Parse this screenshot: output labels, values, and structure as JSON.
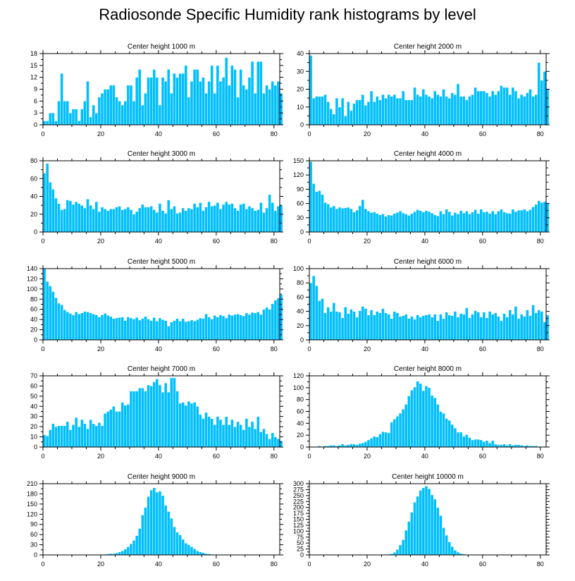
{
  "title": "Radiosonde Specific Humidity rank histograms by level",
  "colors": {
    "bar": "#00bfff",
    "bar_edge": "#ffffff",
    "axis": "#000000"
  },
  "chart_data": [
    {
      "type": "bar",
      "title": "Center height 1000 m",
      "xlim": [
        0,
        82
      ],
      "ylim": [
        0,
        18
      ],
      "xticks": [
        0,
        20,
        40,
        60,
        80
      ],
      "yticks": [
        0,
        3,
        6,
        9,
        12,
        15,
        18
      ],
      "values": [
        1,
        1,
        3,
        3,
        1,
        6,
        13,
        6,
        6,
        3,
        4,
        4,
        1,
        4,
        6,
        11,
        2,
        5,
        3,
        7,
        8,
        9,
        9,
        10,
        10,
        7,
        6,
        5,
        6,
        10,
        10,
        6,
        12,
        14,
        5,
        8,
        12,
        12,
        14,
        12,
        5,
        12,
        11,
        14,
        8,
        13,
        12,
        13,
        13,
        15,
        7,
        11,
        14,
        14,
        11,
        12,
        8,
        11,
        15,
        8,
        15,
        11,
        12,
        17,
        10,
        15,
        14,
        7,
        14,
        10,
        9,
        12,
        16,
        8,
        16,
        16,
        8,
        10,
        9,
        11,
        10,
        11,
        8
      ]
    },
    {
      "type": "bar",
      "title": "Center height 2000 m",
      "xlim": [
        0,
        82
      ],
      "ylim": [
        0,
        40
      ],
      "xticks": [
        0,
        20,
        40,
        60,
        80
      ],
      "yticks": [
        0,
        10,
        20,
        30,
        40
      ],
      "values": [
        39,
        15,
        16,
        16,
        16,
        17,
        13,
        9,
        6,
        15,
        10,
        15,
        5,
        13,
        8,
        12,
        14,
        14,
        17,
        11,
        13,
        19,
        13,
        16,
        14,
        17,
        15,
        17,
        16,
        17,
        15,
        15,
        19,
        14,
        14,
        14,
        21,
        17,
        16,
        20,
        17,
        16,
        15,
        19,
        17,
        16,
        20,
        16,
        15,
        18,
        17,
        23,
        16,
        16,
        14,
        16,
        17,
        21,
        19,
        19,
        19,
        18,
        16,
        19,
        17,
        19,
        22,
        21,
        21,
        17,
        21,
        19,
        15,
        17,
        16,
        18,
        20,
        16,
        17,
        35,
        25,
        30,
        20
      ]
    },
    {
      "type": "bar",
      "title": "Center height 3000 m",
      "xlim": [
        0,
        82
      ],
      "ylim": [
        0,
        80
      ],
      "xticks": [
        0,
        20,
        40,
        60,
        80
      ],
      "yticks": [
        0,
        20,
        40,
        60,
        80
      ],
      "values": [
        66,
        77,
        56,
        48,
        38,
        32,
        25,
        26,
        36,
        35,
        31,
        34,
        32,
        30,
        27,
        37,
        30,
        26,
        34,
        23,
        28,
        26,
        24,
        26,
        26,
        28,
        29,
        25,
        26,
        28,
        25,
        20,
        23,
        27,
        31,
        28,
        28,
        29,
        25,
        22,
        32,
        24,
        21,
        36,
        26,
        29,
        21,
        22,
        27,
        24,
        27,
        26,
        32,
        28,
        33,
        24,
        28,
        34,
        29,
        30,
        33,
        26,
        31,
        34,
        31,
        32,
        27,
        24,
        31,
        32,
        26,
        29,
        27,
        24,
        25,
        33,
        22,
        27,
        42,
        33,
        24,
        29,
        30
      ]
    },
    {
      "type": "bar",
      "title": "Center height 4000 m",
      "xlim": [
        0,
        82
      ],
      "ylim": [
        0,
        150
      ],
      "xticks": [
        0,
        20,
        40,
        60,
        80
      ],
      "yticks": [
        0,
        30,
        60,
        90,
        120,
        150
      ],
      "values": [
        148,
        102,
        85,
        87,
        79,
        62,
        59,
        52,
        55,
        49,
        52,
        50,
        51,
        52,
        49,
        42,
        46,
        55,
        68,
        49,
        44,
        41,
        42,
        39,
        36,
        38,
        33,
        36,
        35,
        39,
        41,
        44,
        40,
        38,
        35,
        39,
        43,
        47,
        45,
        42,
        45,
        43,
        40,
        36,
        34,
        44,
        38,
        48,
        43,
        35,
        41,
        38,
        45,
        40,
        44,
        38,
        42,
        47,
        39,
        48,
        42,
        43,
        39,
        44,
        38,
        44,
        48,
        42,
        40,
        39,
        48,
        43,
        46,
        46,
        48,
        44,
        47,
        53,
        58,
        66,
        62,
        64,
        60
      ]
    },
    {
      "type": "bar",
      "title": "Center height 5000 m",
      "xlim": [
        0,
        82
      ],
      "ylim": [
        0,
        140
      ],
      "xticks": [
        0,
        20,
        40,
        60,
        80
      ],
      "yticks": [
        0,
        20,
        40,
        60,
        80,
        100,
        120,
        140
      ],
      "values": [
        140,
        115,
        106,
        95,
        83,
        72,
        69,
        59,
        55,
        52,
        49,
        55,
        51,
        53,
        56,
        55,
        53,
        51,
        49,
        45,
        49,
        52,
        48,
        46,
        42,
        43,
        44,
        45,
        38,
        45,
        43,
        41,
        44,
        39,
        42,
        46,
        41,
        38,
        44,
        37,
        43,
        40,
        38,
        27,
        35,
        38,
        42,
        37,
        42,
        36,
        37,
        39,
        37,
        40,
        43,
        42,
        51,
        45,
        41,
        48,
        45,
        49,
        47,
        43,
        50,
        48,
        50,
        51,
        49,
        47,
        53,
        50,
        54,
        53,
        55,
        50,
        60,
        64,
        60,
        71,
        78,
        82,
        89
      ]
    },
    {
      "type": "bar",
      "title": "Center height 6000 m",
      "xlim": [
        0,
        82
      ],
      "ylim": [
        0,
        100
      ],
      "xticks": [
        0,
        20,
        40,
        60,
        80
      ],
      "yticks": [
        0,
        20,
        40,
        60,
        80,
        100
      ],
      "values": [
        80,
        90,
        76,
        55,
        58,
        38,
        46,
        40,
        52,
        40,
        39,
        31,
        46,
        37,
        43,
        40,
        32,
        41,
        47,
        44,
        35,
        42,
        35,
        40,
        38,
        44,
        38,
        36,
        30,
        40,
        38,
        33,
        34,
        36,
        30,
        33,
        29,
        35,
        32,
        34,
        35,
        36,
        32,
        36,
        27,
        36,
        30,
        39,
        35,
        34,
        40,
        32,
        37,
        36,
        45,
        31,
        36,
        41,
        39,
        32,
        39,
        31,
        40,
        36,
        38,
        33,
        27,
        37,
        32,
        42,
        36,
        47,
        30,
        36,
        33,
        42,
        34,
        49,
        38,
        42,
        40,
        25,
        35
      ]
    },
    {
      "type": "bar",
      "title": "Center height 7000 m",
      "xlim": [
        0,
        82
      ],
      "ylim": [
        0,
        70
      ],
      "xticks": [
        0,
        20,
        40,
        60,
        80
      ],
      "yticks": [
        0,
        10,
        20,
        30,
        40,
        50,
        60,
        70
      ],
      "values": [
        12,
        11,
        17,
        23,
        20,
        21,
        21,
        21,
        25,
        17,
        22,
        29,
        20,
        27,
        23,
        18,
        27,
        23,
        21,
        24,
        21,
        33,
        35,
        37,
        40,
        35,
        35,
        44,
        41,
        42,
        55,
        55,
        55,
        58,
        58,
        55,
        61,
        60,
        64,
        67,
        61,
        54,
        63,
        54,
        68,
        68,
        55,
        43,
        44,
        41,
        45,
        43,
        44,
        40,
        32,
        28,
        34,
        30,
        28,
        22,
        30,
        27,
        22,
        30,
        22,
        27,
        20,
        25,
        22,
        17,
        28,
        20,
        25,
        18,
        30,
        15,
        18,
        13,
        8,
        14,
        10,
        8,
        6
      ]
    },
    {
      "type": "bar",
      "title": "Center height 8000 m",
      "xlim": [
        0,
        82
      ],
      "ylim": [
        0,
        120
      ],
      "xticks": [
        0,
        20,
        40,
        60,
        80
      ],
      "yticks": [
        0,
        20,
        40,
        60,
        80,
        100,
        120
      ],
      "values": [
        1,
        1,
        1,
        2,
        1,
        2,
        2,
        3,
        3,
        2,
        3,
        5,
        3,
        4,
        5,
        5,
        4,
        6,
        7,
        9,
        12,
        15,
        18,
        17,
        22,
        26,
        25,
        24,
        42,
        47,
        52,
        57,
        64,
        72,
        86,
        96,
        101,
        111,
        107,
        95,
        103,
        100,
        87,
        83,
        72,
        60,
        57,
        48,
        45,
        38,
        32,
        25,
        25,
        18,
        21,
        16,
        12,
        13,
        13,
        12,
        9,
        11,
        7,
        11,
        5,
        4,
        4,
        5,
        3,
        5,
        3,
        4,
        4,
        3,
        2,
        3,
        2,
        2,
        2,
        1,
        1,
        1,
        1
      ]
    },
    {
      "type": "bar",
      "title": "Center height 9000 m",
      "xlim": [
        0,
        82
      ],
      "ylim": [
        0,
        210
      ],
      "xticks": [
        0,
        20,
        40,
        60,
        80
      ],
      "yticks": [
        0,
        30,
        60,
        90,
        120,
        150,
        180,
        210
      ],
      "values": [
        0,
        0,
        0,
        0,
        0,
        0,
        0,
        0,
        0,
        0,
        0,
        0,
        0,
        0,
        0,
        0,
        0,
        0,
        0,
        0,
        1,
        2,
        3,
        4,
        4,
        6,
        9,
        12,
        17,
        24,
        33,
        43,
        57,
        78,
        118,
        140,
        172,
        191,
        198,
        185,
        188,
        175,
        146,
        128,
        108,
        83,
        67,
        59,
        46,
        35,
        30,
        24,
        18,
        12,
        9,
        7,
        4,
        3,
        2,
        1,
        1,
        0,
        0,
        0,
        0,
        0,
        0,
        0,
        0,
        0,
        0,
        0,
        0,
        0,
        0,
        0,
        0,
        0,
        0,
        0,
        0,
        0,
        0
      ]
    },
    {
      "type": "bar",
      "title": "Center height 10000 m",
      "xlim": [
        0,
        82
      ],
      "ylim": [
        0,
        300
      ],
      "xticks": [
        0,
        20,
        40,
        60,
        80
      ],
      "yticks": [
        0,
        25,
        50,
        75,
        100,
        125,
        150,
        175,
        200,
        225,
        250,
        275,
        300
      ],
      "values": [
        0,
        0,
        0,
        0,
        0,
        0,
        0,
        0,
        0,
        0,
        0,
        0,
        0,
        0,
        0,
        0,
        0,
        0,
        0,
        0,
        0,
        0,
        0,
        0,
        0,
        1,
        2,
        3,
        5,
        11,
        23,
        42,
        64,
        104,
        141,
        180,
        222,
        247,
        272,
        283,
        290,
        279,
        253,
        235,
        200,
        166,
        115,
        83,
        55,
        35,
        20,
        12,
        6,
        4,
        2,
        1,
        1,
        0,
        0,
        0,
        0,
        0,
        0,
        0,
        0,
        0,
        0,
        0,
        0,
        0,
        0,
        0,
        0,
        0,
        0,
        0,
        0,
        0,
        0,
        0,
        0,
        0,
        0
      ]
    }
  ]
}
